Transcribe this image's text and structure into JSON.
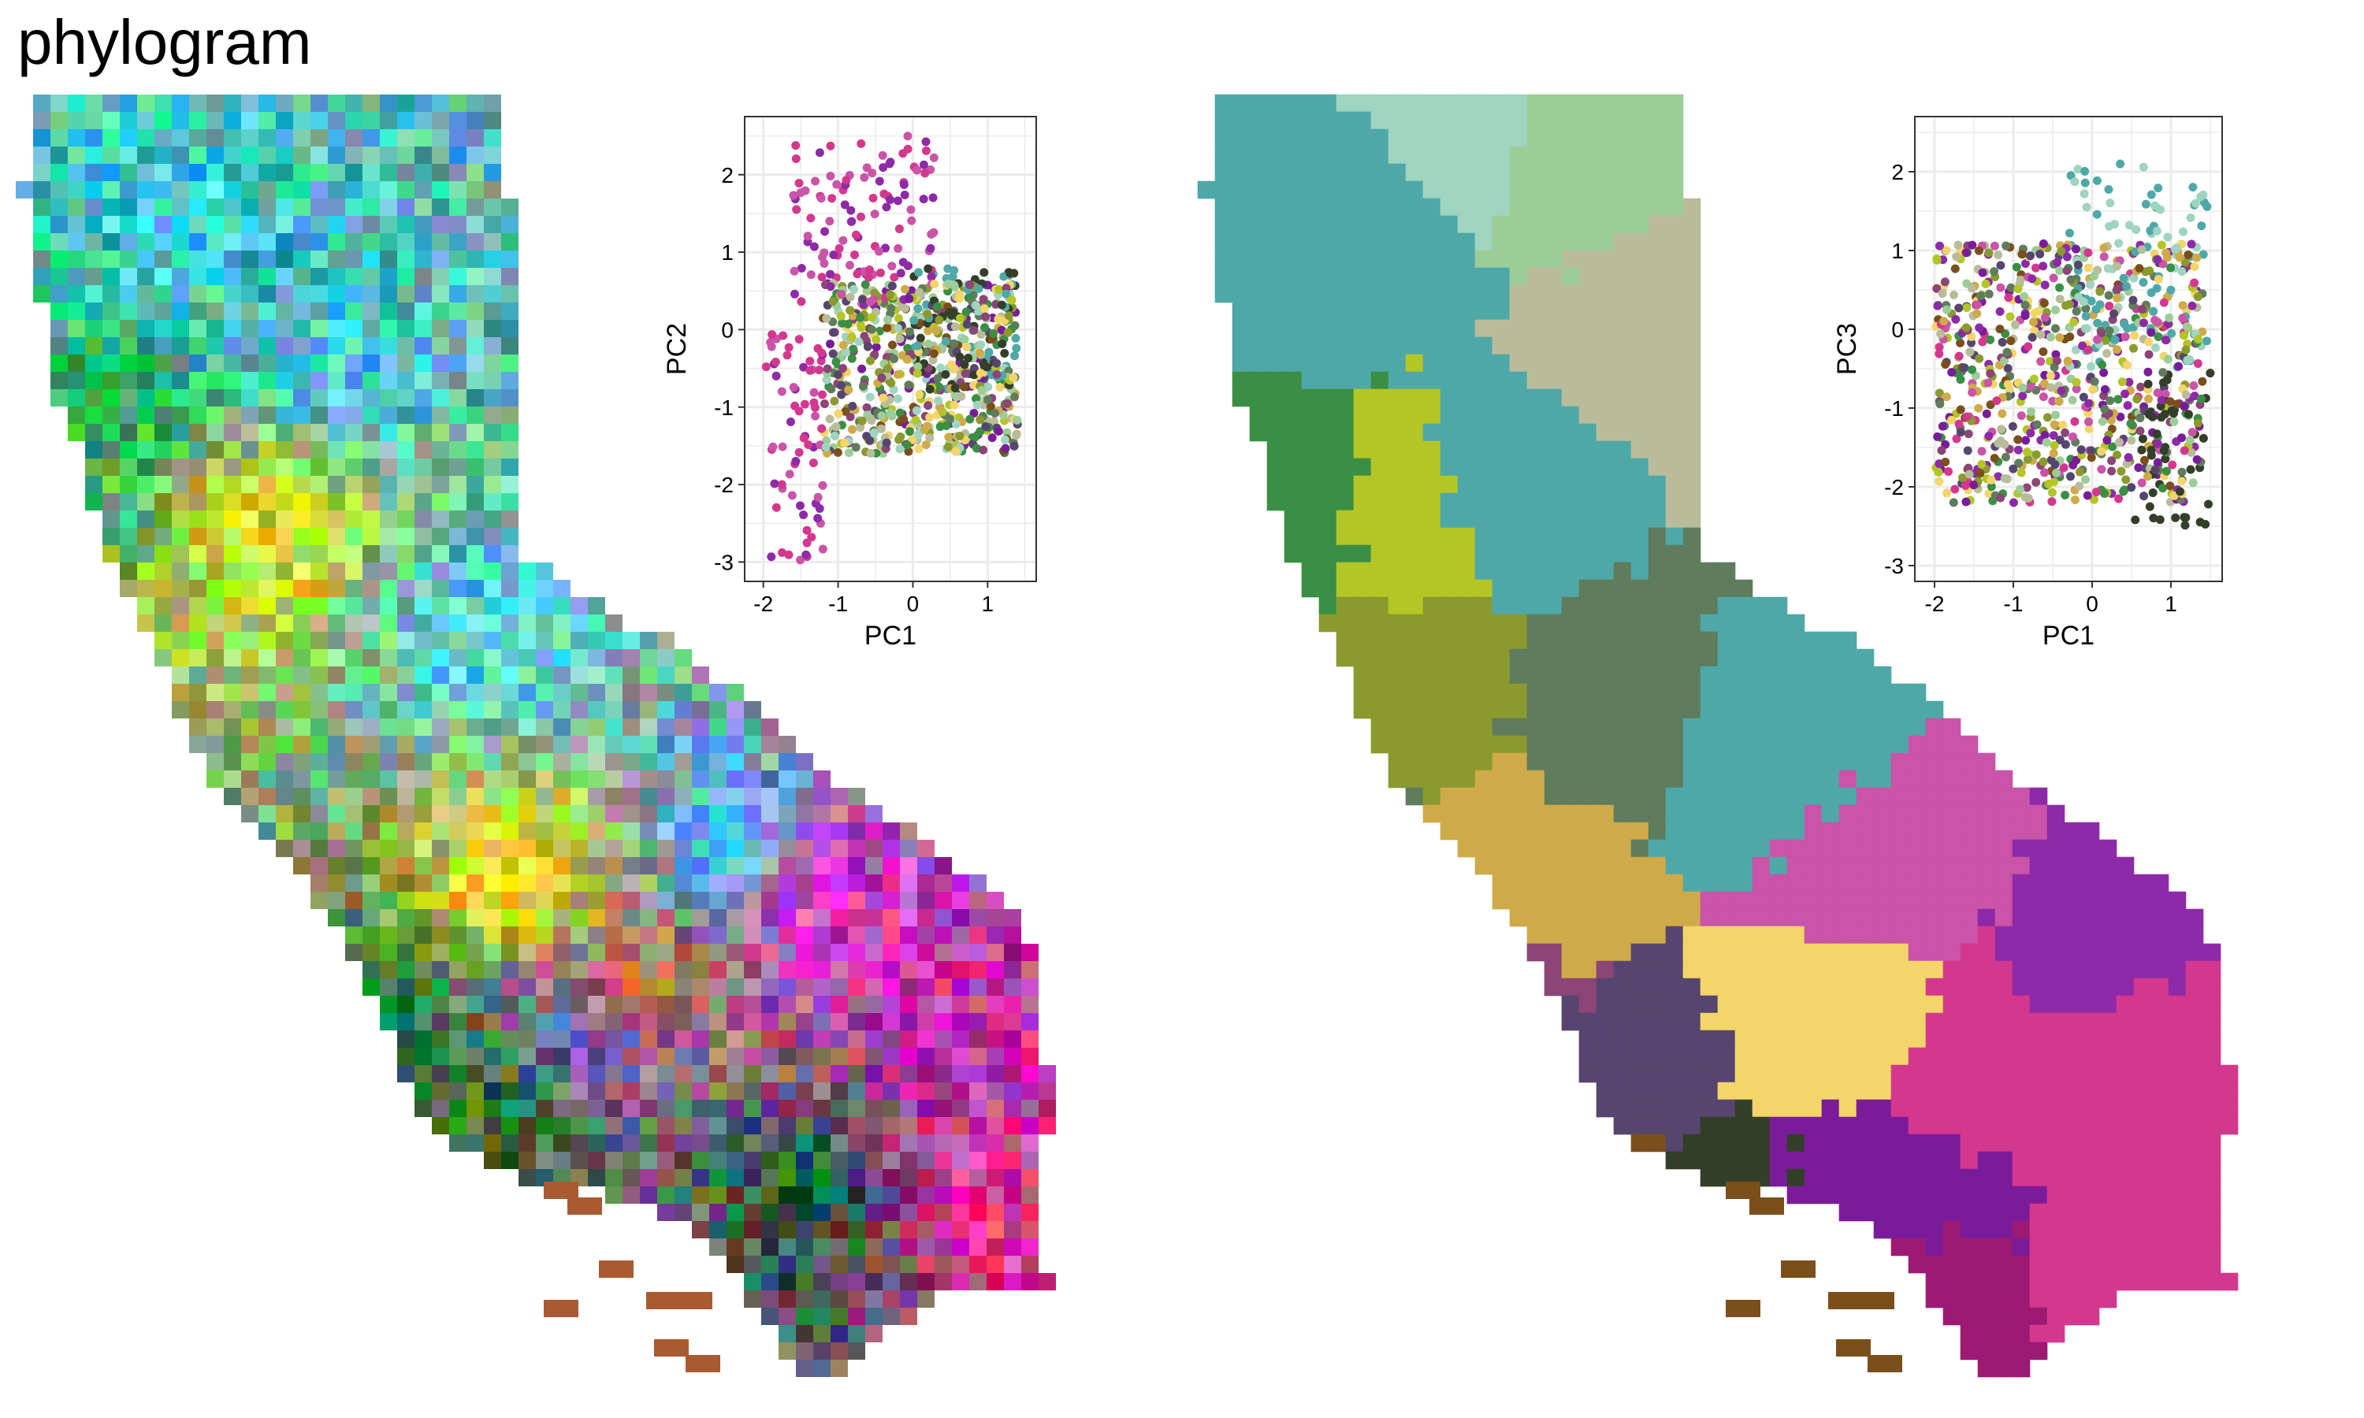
{
  "figure": {
    "title": "phylogram"
  },
  "colors": {
    "teal": "#4fa8a8",
    "green": "#3a8f44",
    "olive": "#8a9a2e",
    "lime": "#b4c526",
    "sage": "#5f7c5c",
    "mustard": "#cfaa48",
    "light_green": "#9ccc98",
    "mint": "#9fd4c0",
    "khaki": "#b9bc9a",
    "plum": "#8b4577",
    "indigo": "#56466f",
    "dark_olive": "#333f28",
    "brown": "#7a4f1c",
    "orchid": "#c954a8",
    "magenta": "#d4388e",
    "purple": "#8e2aa8",
    "violet": "#7a1c9a",
    "dark_magenta": "#9c1a72",
    "gold": "#f3d56a",
    "grid": "#ebebeb",
    "panel_border": "#333333"
  },
  "chart_data": [
    {
      "type": "heatmap",
      "title": "",
      "description_key": "pixel RGB map of PC1-PC3 scores",
      "xlabel": "",
      "ylabel": ""
    },
    {
      "type": "scatter",
      "title": "",
      "xlabel": "PC1",
      "ylabel": "PC2",
      "xlim": [
        -2.25,
        1.65
      ],
      "ylim": [
        -3.25,
        2.75
      ],
      "x_ticks": [
        "-2",
        "-1",
        "0",
        "1"
      ],
      "y_ticks": [
        "-3",
        "-2",
        "-1",
        "0",
        "1",
        "2"
      ],
      "grid": true,
      "n_points": 900
    },
    {
      "type": "heatmap",
      "title": "",
      "description_key": "cluster map with white boundaries",
      "xlabel": "",
      "ylabel": ""
    },
    {
      "type": "scatter",
      "title": "",
      "xlabel": "PC1",
      "ylabel": "PC3",
      "xlim": [
        -2.25,
        1.65
      ],
      "ylim": [
        -3.2,
        2.7
      ],
      "x_ticks": [
        "-2",
        "-1",
        "0",
        "1"
      ],
      "y_ticks": [
        "-3",
        "-2",
        "-1",
        "0",
        "1",
        "2"
      ],
      "grid": true,
      "n_points": 900
    }
  ]
}
